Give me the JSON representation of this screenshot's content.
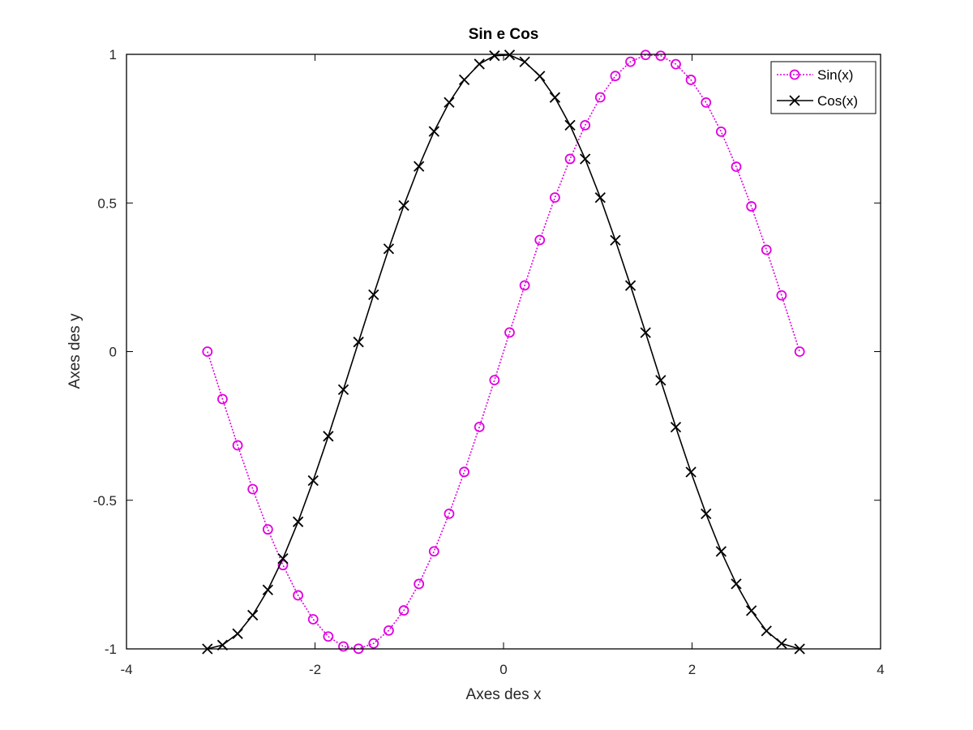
{
  "chart_data": {
    "type": "line",
    "title": "Sin e Cos",
    "xlabel": "Axes des x",
    "ylabel": "Axes des y",
    "xlim": [
      -4,
      4
    ],
    "ylim": [
      -1,
      1
    ],
    "x_ticks": [
      -4,
      -2,
      0,
      2,
      4
    ],
    "y_ticks": [
      -1,
      -0.5,
      0,
      0.5,
      1
    ],
    "x_tick_labels": [
      "-4",
      "-2",
      "0",
      "2",
      "4"
    ],
    "y_tick_labels": [
      "-1",
      "-0.5",
      "0",
      "0.5",
      "1"
    ],
    "grid": false,
    "legend_position": "top-right",
    "x": [
      -3.1416,
      -2.9813,
      -2.821,
      -2.6607,
      -2.5004,
      -2.3401,
      -2.1798,
      -2.0195,
      -1.8592,
      -1.6989,
      -1.5386,
      -1.3783,
      -1.218,
      -1.0577,
      -0.8974,
      -0.7371,
      -0.5768,
      -0.4165,
      -0.2562,
      -0.0959,
      0.0644,
      0.2247,
      0.385,
      0.5453,
      0.7056,
      0.8659,
      1.0262,
      1.1865,
      1.3468,
      1.5071,
      1.6674,
      1.8277,
      1.988,
      2.1483,
      2.3086,
      2.4689,
      2.6292,
      2.7895,
      2.9498,
      3.1416
    ],
    "series": [
      {
        "name": "Sin(x)",
        "color": "#e000e0",
        "line_style": "dotted",
        "marker": "circle",
        "values": [
          0.0,
          -0.1596,
          -0.3151,
          -0.4625,
          -0.598,
          -0.7181,
          -0.8198,
          -0.9005,
          -0.9584,
          -0.9918,
          -0.9995,
          -0.9815,
          -0.9382,
          -0.8706,
          -0.7816,
          -0.6718,
          -0.5453,
          -0.4047,
          -0.2534,
          -0.0958,
          0.0644,
          0.2228,
          0.3756,
          0.5185,
          0.6482,
          0.7616,
          0.8553,
          0.9272,
          0.9751,
          0.998,
          0.9953,
          0.967,
          0.9142,
          0.8379,
          0.7397,
          0.6222,
          0.4886,
          0.3424,
          0.1893,
          0.0
        ]
      },
      {
        "name": "Cos(x)",
        "color": "#000000",
        "line_style": "solid",
        "marker": "x",
        "values": [
          -1.0,
          -0.9872,
          -0.949,
          -0.8866,
          -0.8015,
          -0.696,
          -0.5725,
          -0.4339,
          -0.2846,
          -0.1279,
          0.0322,
          0.1912,
          0.3458,
          0.4915,
          0.6232,
          0.7406,
          0.8382,
          0.9145,
          0.9674,
          0.9954,
          0.9979,
          0.9749,
          0.9268,
          0.8549,
          0.7615,
          0.648,
          0.5182,
          0.3746,
          0.2222,
          0.0637,
          -0.0965,
          -0.2542,
          -0.4053,
          -0.5458,
          -0.6721,
          -0.7815,
          -0.8715,
          -0.9396,
          -0.9819,
          -1.0
        ]
      }
    ]
  }
}
